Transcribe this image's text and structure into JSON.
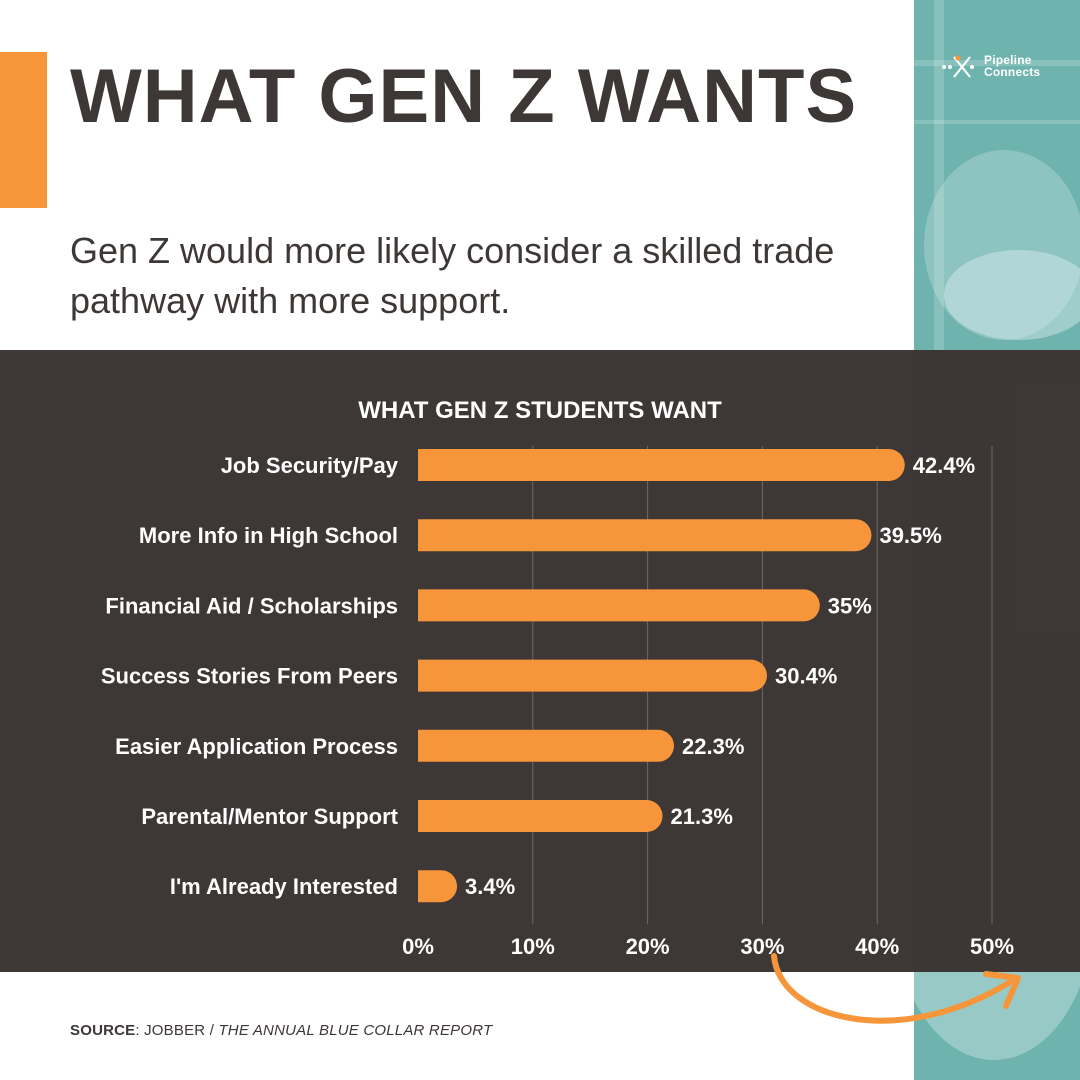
{
  "brand": {
    "logo_line1": "Pipeline",
    "logo_line2": "Connects",
    "accent_color": "#f7953a",
    "dark_color": "#3d3736",
    "teal_color": "#6eb3ae"
  },
  "header": {
    "title": "WHAT GEN Z WANTS",
    "subtitle": "Gen Z would more likely consider a skilled trade pathway with more support."
  },
  "chart_data": {
    "type": "bar",
    "orientation": "horizontal",
    "title": "WHAT GEN Z STUDENTS WANT",
    "categories": [
      "Job Security/Pay",
      "More Info in High School",
      "Financial Aid / Scholarships",
      "Success Stories From Peers",
      "Easier Application Process",
      "Parental/Mentor Support",
      "I'm Already Interested"
    ],
    "values": [
      42.4,
      39.5,
      35,
      30.4,
      22.3,
      21.3,
      3.4
    ],
    "value_labels": [
      "42.4%",
      "39.5%",
      "35%",
      "30.4%",
      "22.3%",
      "21.3%",
      "3.4%"
    ],
    "xlim": [
      0,
      50
    ],
    "xticks": [
      0,
      10,
      20,
      30,
      40,
      50
    ],
    "xtick_labels": [
      "0%",
      "10%",
      "20%",
      "30%",
      "40%",
      "50%"
    ],
    "grid": true,
    "bar_color": "#f7953a"
  },
  "footer": {
    "source_label": "SOURCE",
    "source_text": ": JOBBER / ",
    "source_title": "THE ANNUAL BLUE COLLAR REPORT"
  }
}
